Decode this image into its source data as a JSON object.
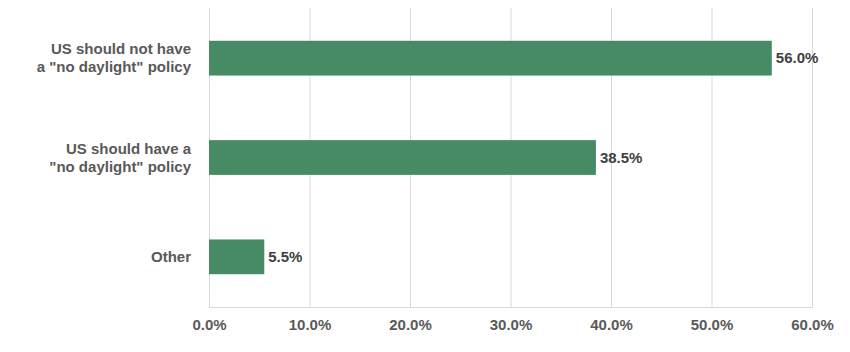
{
  "chart_data": {
    "type": "bar",
    "orientation": "horizontal",
    "categories": [
      "US should not have a \"no daylight\" policy",
      "US should have a \"no daylight\" policy",
      "Other"
    ],
    "values": [
      56.0,
      38.5,
      5.5
    ],
    "value_labels": [
      "56.0%",
      "38.5%",
      "5.5%"
    ],
    "data_labels": true,
    "color": "#468b64",
    "xlim": [
      0,
      60
    ],
    "xticks": [
      {
        "value": 0,
        "label": "0.0%"
      },
      {
        "value": 10,
        "label": "10.0%"
      },
      {
        "value": 20,
        "label": "20.0%"
      },
      {
        "value": 30,
        "label": "30.0%"
      },
      {
        "value": 40,
        "label": "40.0%"
      },
      {
        "value": 50,
        "label": "50.0%"
      },
      {
        "value": 60,
        "label": "60.0%"
      }
    ],
    "grid": true
  }
}
